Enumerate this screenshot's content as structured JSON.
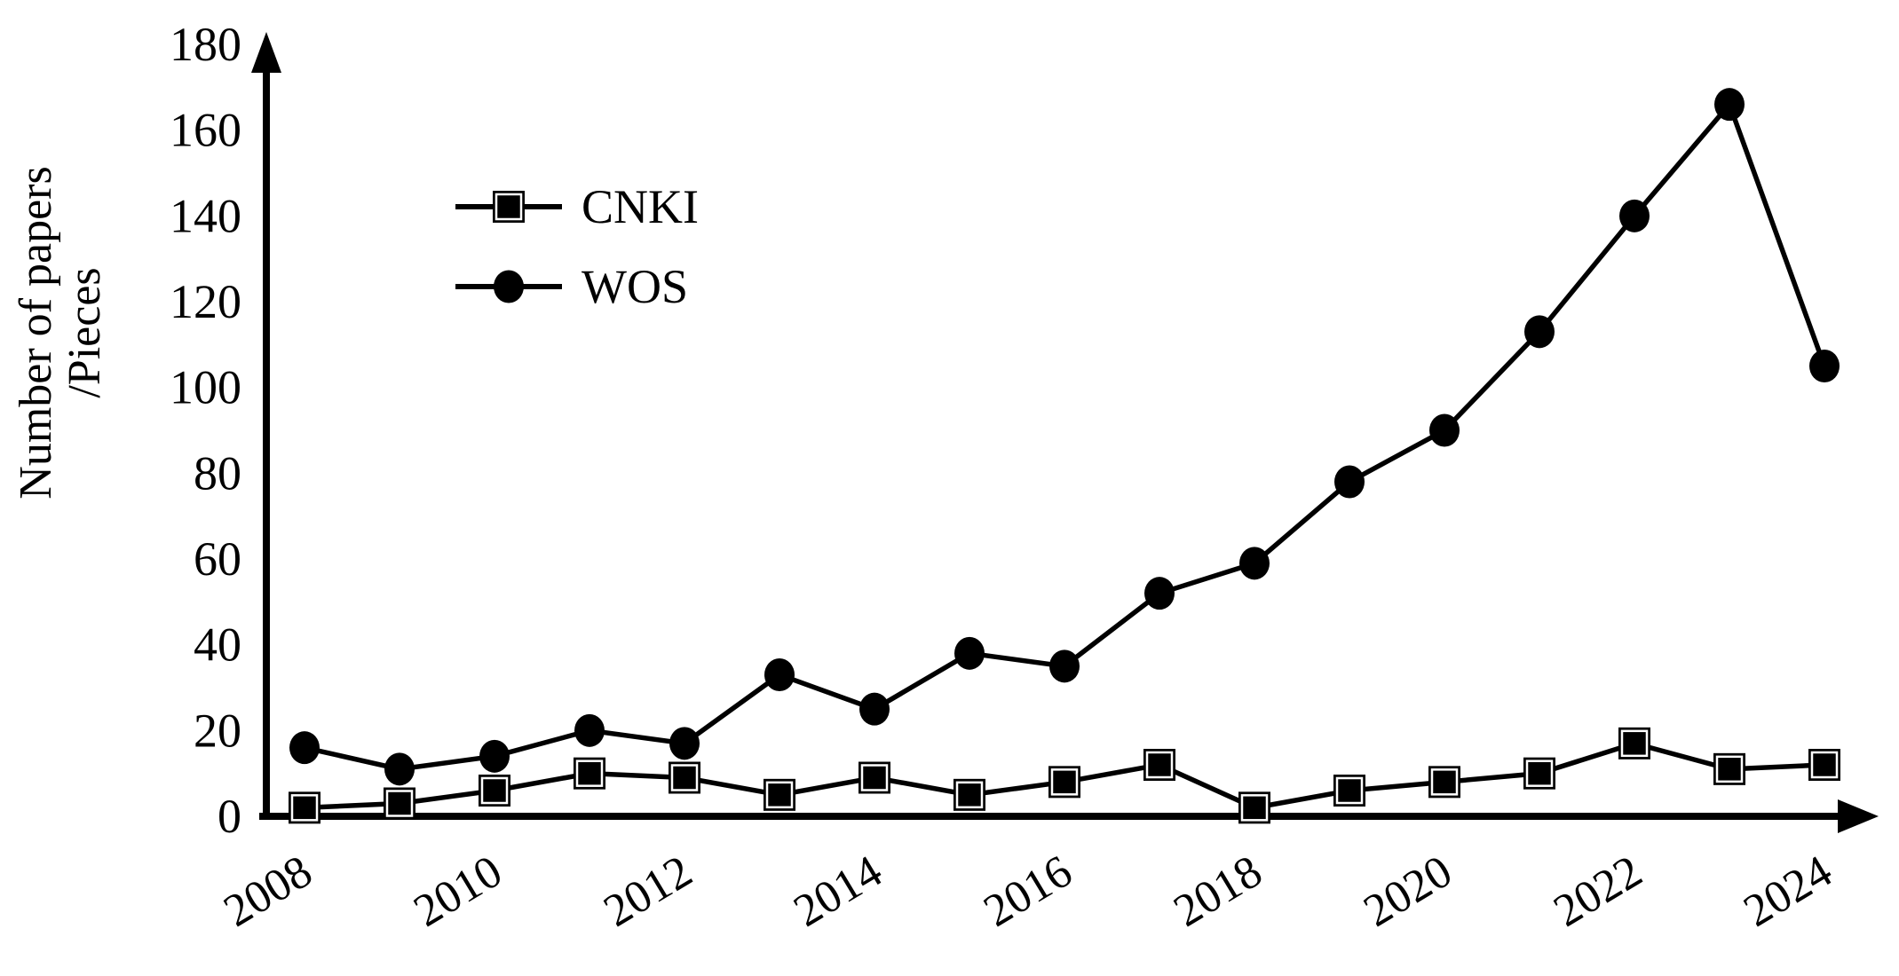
{
  "figure": {
    "background_color": "#ffffff",
    "ink_color": "#000000"
  },
  "chart_data": {
    "type": "line",
    "title": "",
    "xlabel": "",
    "ylabel_lines": [
      "Number of papers",
      "/Pieces"
    ],
    "x": [
      2008,
      2009,
      2010,
      2011,
      2012,
      2013,
      2014,
      2015,
      2016,
      2017,
      2018,
      2019,
      2020,
      2021,
      2022,
      2023,
      2024
    ],
    "x_tick_labels": [
      "2008",
      "2010",
      "2012",
      "2014",
      "2016",
      "2018",
      "2020",
      "2022",
      "2024"
    ],
    "y_ticks": [
      0,
      20,
      40,
      60,
      80,
      100,
      120,
      140,
      160,
      180
    ],
    "ylim": [
      0,
      180
    ],
    "grid": false,
    "legend_position": "upper-left-inside",
    "series": [
      {
        "name": "CNKI",
        "marker": "square",
        "color": "#000000",
        "values": [
          2,
          3,
          6,
          10,
          9,
          5,
          9,
          5,
          8,
          12,
          2,
          6,
          8,
          10,
          17,
          11,
          12
        ]
      },
      {
        "name": "WOS",
        "marker": "circle",
        "color": "#000000",
        "values": [
          16,
          11,
          14,
          20,
          17,
          33,
          25,
          38,
          35,
          52,
          59,
          78,
          90,
          113,
          140,
          166,
          105
        ]
      }
    ]
  }
}
